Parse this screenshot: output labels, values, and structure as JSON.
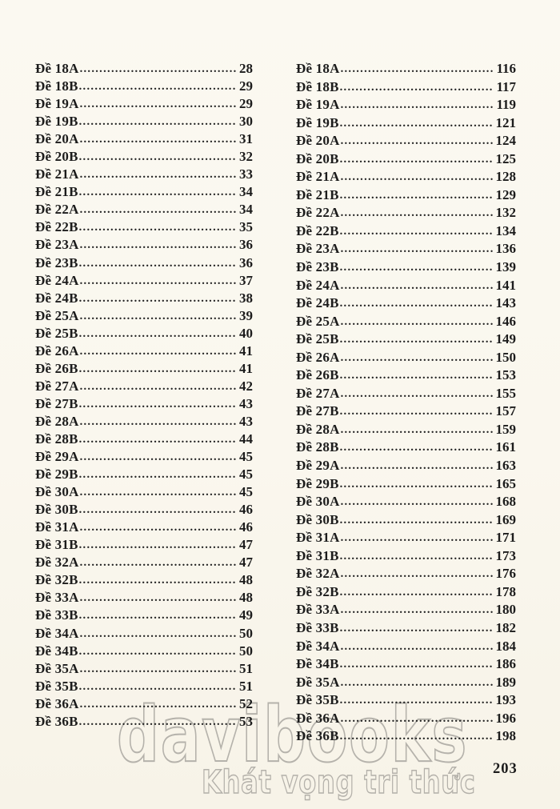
{
  "page": {
    "number": "203"
  },
  "watermark": {
    "brand": "davibooks",
    "tagline": "Khát vọng tri thức",
    "color": "#b5b2ab"
  },
  "toc": {
    "left_column": [
      {
        "label": "Đề 18A",
        "page": "28"
      },
      {
        "label": "Đề 18B",
        "page": "29"
      },
      {
        "label": "Đề 19A",
        "page": "29"
      },
      {
        "label": "Đề 19B",
        "page": "30"
      },
      {
        "label": "Đề 20A",
        "page": "31"
      },
      {
        "label": "Đề 20B",
        "page": "32"
      },
      {
        "label": "Đề 21A",
        "page": "33"
      },
      {
        "label": "Đề 21B",
        "page": "34"
      },
      {
        "label": "Đề 22A",
        "page": "34"
      },
      {
        "label": "Đề 22B",
        "page": "35"
      },
      {
        "label": "Đề 23A",
        "page": "36"
      },
      {
        "label": "Đề 23B",
        "page": "36"
      },
      {
        "label": "Đề 24A",
        "page": "37"
      },
      {
        "label": "Đề 24B",
        "page": "38"
      },
      {
        "label": "Đề 25A",
        "page": "39"
      },
      {
        "label": "Đề 25B",
        "page": "40"
      },
      {
        "label": "Đề 26A",
        "page": "41"
      },
      {
        "label": "Đề 26B",
        "page": "41"
      },
      {
        "label": "Đề 27A",
        "page": "42"
      },
      {
        "label": "Đề 27B",
        "page": "43"
      },
      {
        "label": "Đề 28A",
        "page": "43"
      },
      {
        "label": "Đề 28B",
        "page": "44"
      },
      {
        "label": "Đề 29A",
        "page": "45"
      },
      {
        "label": "Đề 29B",
        "page": "45"
      },
      {
        "label": "Đề 30A",
        "page": "45"
      },
      {
        "label": "Đề 30B",
        "page": "46"
      },
      {
        "label": "Đề 31A",
        "page": "46"
      },
      {
        "label": "Đề 31B",
        "page": "47"
      },
      {
        "label": "Đề 32A",
        "page": "47"
      },
      {
        "label": "Đề 32B",
        "page": "48"
      },
      {
        "label": "Đề 33A",
        "page": "48"
      },
      {
        "label": "Đề 33B",
        "page": "49"
      },
      {
        "label": "Đề 34A",
        "page": "50"
      },
      {
        "label": "Đề 34B",
        "page": "50"
      },
      {
        "label": "Đề 35A",
        "page": "51"
      },
      {
        "label": "Đề 35B",
        "page": "51"
      },
      {
        "label": "Đề 36A",
        "page": "52"
      },
      {
        "label": "Đề 36B",
        "page": "53"
      }
    ],
    "right_column": [
      {
        "label": "Đề 18A",
        "page": "116"
      },
      {
        "label": "Đề 18B",
        "page": "117"
      },
      {
        "label": "Đề 19A",
        "page": "119"
      },
      {
        "label": "Đề 19B",
        "page": "121"
      },
      {
        "label": "Đề 20A",
        "page": "124"
      },
      {
        "label": "Đề 20B",
        "page": "125"
      },
      {
        "label": "Đề 21A",
        "page": "128"
      },
      {
        "label": "Đề 21B",
        "page": "129"
      },
      {
        "label": "Đề 22A",
        "page": "132"
      },
      {
        "label": "Đề 22B",
        "page": "134"
      },
      {
        "label": "Đề 23A",
        "page": "136"
      },
      {
        "label": "Đề 23B",
        "page": "139"
      },
      {
        "label": "Đề 24A",
        "page": "141"
      },
      {
        "label": "Đề 24B",
        "page": "143"
      },
      {
        "label": "Đề 25A",
        "page": "146"
      },
      {
        "label": "Đề 25B",
        "page": "149"
      },
      {
        "label": "Đề 26A",
        "page": "150"
      },
      {
        "label": "Đề 26B",
        "page": "153"
      },
      {
        "label": "Đề 27A",
        "page": "155"
      },
      {
        "label": "Đề 27B",
        "page": "157"
      },
      {
        "label": "Đề 28A",
        "page": "159"
      },
      {
        "label": "Đề 28B",
        "page": "161"
      },
      {
        "label": "Đề 29A",
        "page": "163"
      },
      {
        "label": "Đề 29B",
        "page": "165"
      },
      {
        "label": "Đề 30A",
        "page": "168"
      },
      {
        "label": "Đề 30B",
        "page": "169"
      },
      {
        "label": "Đề 31A",
        "page": "171"
      },
      {
        "label": "Đề 31B",
        "page": "173"
      },
      {
        "label": "Đề 32A",
        "page": "176"
      },
      {
        "label": "Đề 32B",
        "page": "178"
      },
      {
        "label": "Đề 33A",
        "page": "180"
      },
      {
        "label": "Đề 33B",
        "page": "182"
      },
      {
        "label": "Đề 34A",
        "page": "184"
      },
      {
        "label": "Đề 34B",
        "page": "186"
      },
      {
        "label": "Đề 35A",
        "page": "189"
      },
      {
        "label": "Đề 35B",
        "page": "193"
      },
      {
        "label": "Đề 36A",
        "page": "196"
      },
      {
        "label": "Đề 36B",
        "page": "198"
      }
    ]
  }
}
